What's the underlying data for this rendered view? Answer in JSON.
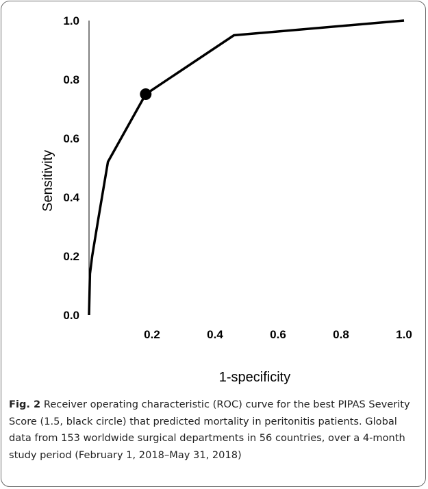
{
  "chart_data": {
    "type": "line",
    "xlabel": "1-specificity",
    "ylabel": "Sensitivity",
    "xlim": [
      0.0,
      1.0
    ],
    "ylim": [
      0.0,
      1.0
    ],
    "x_ticks": [
      "0.2",
      "0.4",
      "0.6",
      "0.8",
      "1.0"
    ],
    "y_ticks": [
      "0.0",
      "0.2",
      "0.4",
      "0.6",
      "0.8",
      "1.0"
    ],
    "grid": false,
    "series": [
      {
        "x": [
          0.0,
          0.003,
          0.01,
          0.03,
          0.06,
          0.18,
          0.46,
          1.0
        ],
        "y": [
          0.0,
          0.14,
          0.2,
          0.33,
          0.52,
          0.75,
          0.95,
          1.0
        ]
      }
    ],
    "highlight_point": {
      "x": 0.18,
      "y": 0.75,
      "label": "1.5"
    },
    "line_color": "#000000"
  },
  "caption": {
    "figure_label": "Fig. 2",
    "text": "Receiver operating characteristic (ROC) curve for the best PIPAS Severity Score (1.5, black circle) that predicted mortality in peritonitis patients. Global data from 153 worldwide surgical departments in 56 countries, over a 4-month study period (February 1, 2018–May 31, 2018)"
  }
}
